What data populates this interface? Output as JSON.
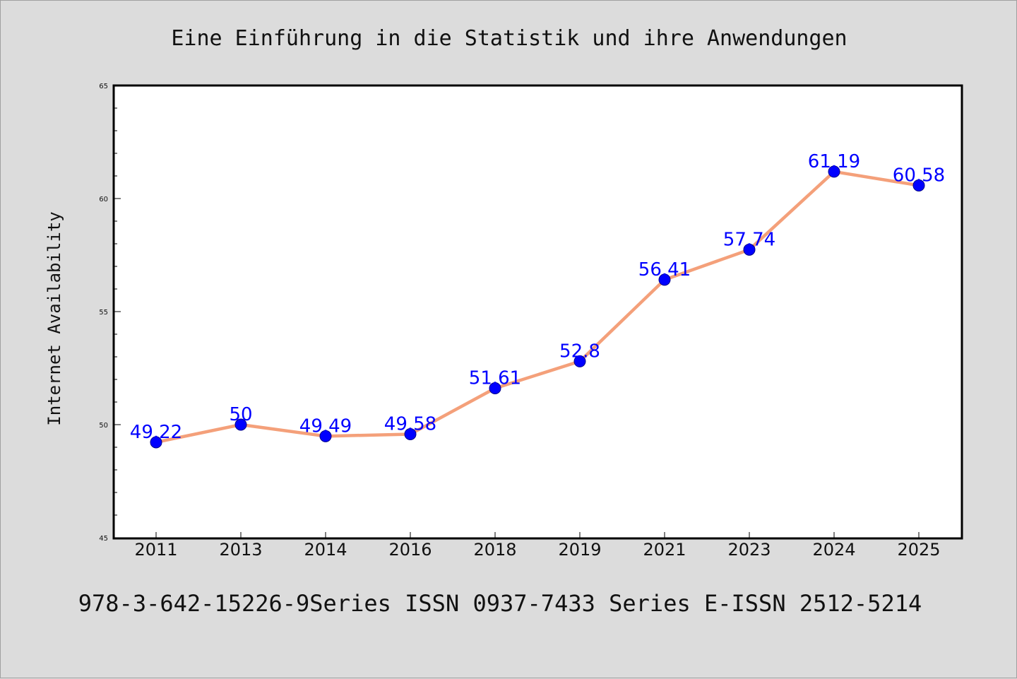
{
  "page": {
    "title": "Eine Einführung in die Statistik und ihre Anwendungen",
    "footer": "978-3-642-15226-9Series ISSN 0937-7433 Series E-ISSN 2512-5214"
  },
  "chart_data": {
    "type": "line",
    "title": "Eine Einführung in die Statistik und ihre Anwendungen",
    "xlabel": "",
    "ylabel": "Internet Availability",
    "categories": [
      "2011",
      "2013",
      "2014",
      "2016",
      "2018",
      "2019",
      "2021",
      "2023",
      "2024",
      "2025"
    ],
    "series": [
      {
        "values": [
          49.22,
          50,
          49.49,
          49.58,
          51.61,
          52.8,
          56.41,
          57.74,
          61.19,
          60.58
        ]
      }
    ],
    "data_labels": [
      "49.22",
      "50",
      "49.49",
      "49.58",
      "51.61",
      "52.8",
      "56.41",
      "57.74",
      "61.19",
      "60.58"
    ],
    "ylim": [
      45,
      65
    ],
    "yticks": [
      "45",
      "50",
      "55",
      "60",
      "65"
    ],
    "grid": false,
    "legend": "none",
    "colors": {
      "line": "#f4a07a",
      "marker": "#0000ff",
      "marker_edge": "#00008b",
      "label": "#0000ff",
      "background": "#dcdcdc",
      "plot_background": "#ffffff"
    }
  }
}
